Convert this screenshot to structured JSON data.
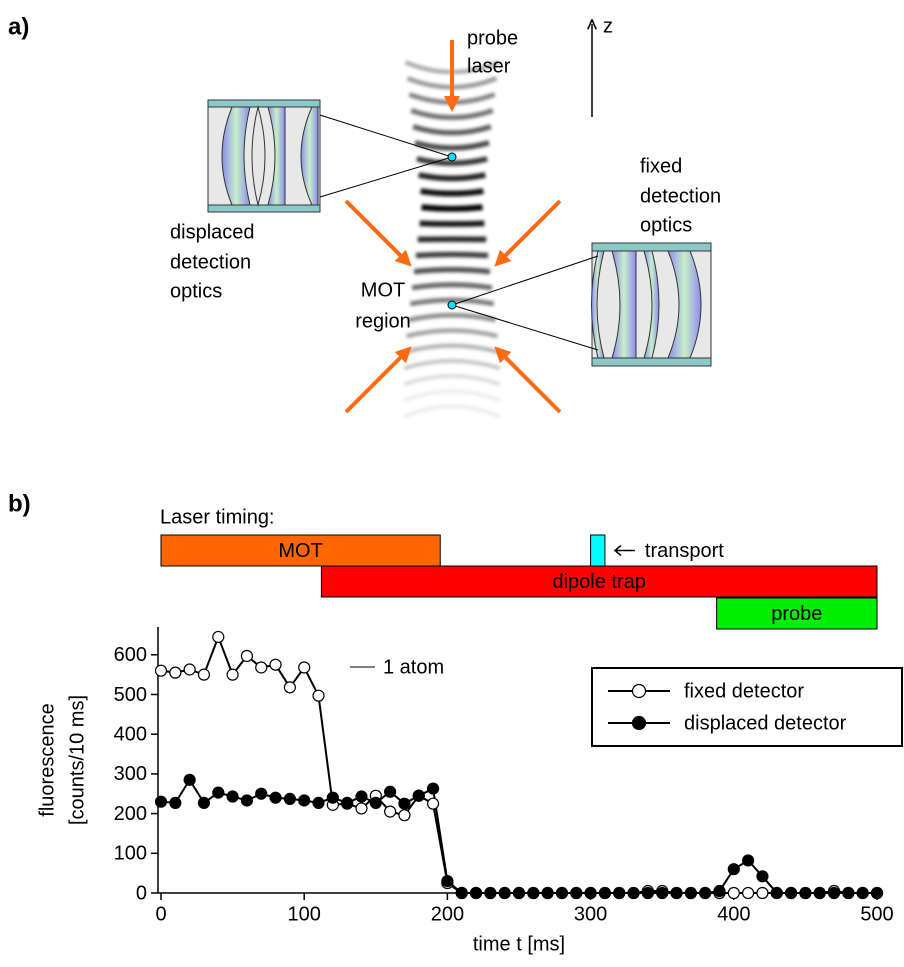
{
  "panel_labels": [
    "a)",
    "b)"
  ],
  "diagram": {
    "probe_label": [
      "probe",
      "laser"
    ],
    "z_label": "z",
    "displaced_label": [
      "displaced",
      "detection",
      "optics"
    ],
    "fixed_label": [
      "fixed",
      "detection",
      "optics"
    ],
    "mot_label": [
      "MOT",
      "region"
    ]
  },
  "chart_data": {
    "type": "line",
    "timing": {
      "title": "Laser timing:",
      "bars": [
        {
          "name": "MOT",
          "start": 0,
          "end": 195,
          "color": "#ff6600"
        },
        {
          "name": "transport",
          "start": 300,
          "end": 310,
          "color": "#00ffff"
        },
        {
          "name": "dipole trap",
          "start": 112,
          "end": 500,
          "color": "#ff0000"
        },
        {
          "name": "probe",
          "start": 388,
          "end": 500,
          "color": "#00ee00"
        }
      ]
    },
    "scale_bar_label": "1 atom",
    "xlabel": "time t [ms]",
    "ylabel": [
      "fluorescence",
      "[counts/10 ms]"
    ],
    "x": [
      0,
      10,
      20,
      30,
      40,
      50,
      60,
      70,
      80,
      90,
      100,
      110,
      120,
      130,
      140,
      150,
      160,
      170,
      180,
      190,
      200,
      210,
      220,
      230,
      240,
      250,
      260,
      270,
      280,
      290,
      300,
      310,
      320,
      330,
      340,
      350,
      360,
      370,
      380,
      390,
      400,
      410,
      420,
      430,
      440,
      450,
      460,
      470,
      480,
      490,
      500
    ],
    "series": [
      {
        "name": "fixed detector",
        "color": "#000000",
        "marker": "open",
        "values": [
          560,
          555,
          563,
          550,
          645,
          550,
          597,
          568,
          575,
          518,
          568,
          497,
          222,
          225,
          213,
          245,
          205,
          196,
          245,
          225,
          25,
          0,
          0,
          0,
          0,
          0,
          0,
          0,
          0,
          0,
          0,
          0,
          0,
          0,
          5,
          5,
          0,
          0,
          0,
          0,
          0,
          0,
          0,
          0,
          0,
          0,
          0,
          5,
          0,
          0,
          0
        ]
      },
      {
        "name": "displaced detector",
        "color": "#000000",
        "marker": "filled",
        "values": [
          230,
          227,
          285,
          227,
          253,
          243,
          233,
          250,
          240,
          237,
          233,
          227,
          240,
          227,
          243,
          227,
          255,
          225,
          245,
          263,
          30,
          0,
          0,
          0,
          0,
          0,
          0,
          0,
          0,
          0,
          0,
          0,
          0,
          0,
          0,
          0,
          0,
          0,
          0,
          5,
          60,
          82,
          42,
          0,
          0,
          0,
          0,
          0,
          0,
          0,
          0
        ]
      }
    ],
    "xlim": [
      0,
      500
    ],
    "ylim": [
      0,
      670
    ],
    "xticks": [
      0,
      100,
      200,
      300,
      400,
      500
    ],
    "yticks": [
      0,
      100,
      200,
      300,
      400,
      500,
      600
    ],
    "legend": "upper right"
  }
}
